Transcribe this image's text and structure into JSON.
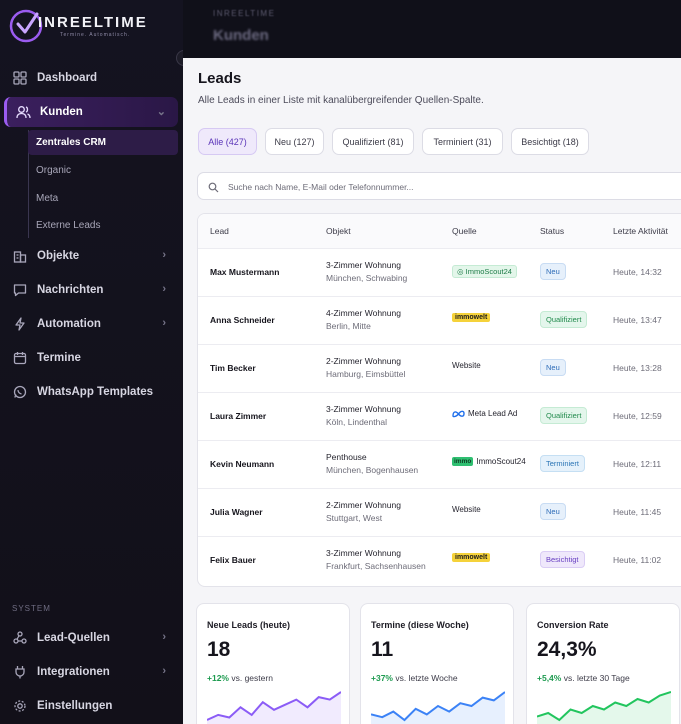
{
  "app": {
    "logo_text": "INREELTIME",
    "logo_sub": "Termine. Automatisch."
  },
  "topbar": {
    "crumb": "INREELTIME",
    "title": "Kunden"
  },
  "sidebar": {
    "items": [
      {
        "label": "Dashboard"
      },
      {
        "label": "Kunden"
      },
      {
        "label": "Objekte"
      },
      {
        "label": "Nachrichten"
      },
      {
        "label": "Automation"
      },
      {
        "label": "Termine"
      },
      {
        "label": "WhatsApp Templates"
      }
    ],
    "subitems": [
      {
        "label": "Zentrales CRM"
      },
      {
        "label": "Organic"
      },
      {
        "label": "Meta"
      },
      {
        "label": "Externe Leads"
      }
    ],
    "system_label": "SYSTEM",
    "system_items": [
      {
        "label": "Lead-Quellen"
      },
      {
        "label": "Integrationen"
      },
      {
        "label": "Einstellungen"
      }
    ]
  },
  "main": {
    "title": "Leads",
    "subtitle": "Alle Leads in einer Liste mit kanalübergreifender Quellen-Spalte.",
    "tabs": [
      {
        "label": "Alle (427)"
      },
      {
        "label": "Neu (127)"
      },
      {
        "label": "Qualifiziert (81)"
      },
      {
        "label": "Terminiert (31)"
      },
      {
        "label": "Besichtigt (18)"
      }
    ],
    "search_placeholder": "Suche nach Name, E-Mail oder Telefonnummer..."
  },
  "table": {
    "columns": [
      "Lead",
      "Objekt",
      "Quelle",
      "Status",
      "Letzte Aktivität"
    ],
    "rows": [
      {
        "name": "Max Mustermann",
        "obj": "3-Zimmer Wohnung",
        "loc": "München, Schwabing",
        "source": "ImmoScout24",
        "status": "Neu",
        "time": "Heute, 14:32"
      },
      {
        "name": "Anna Schneider",
        "obj": "4-Zimmer Wohnung",
        "loc": "Berlin, Mitte",
        "source": "immowelt",
        "status": "Qualifiziert",
        "time": "Heute, 13:47"
      },
      {
        "name": "Tim Becker",
        "obj": "2-Zimmer Wohnung",
        "loc": "Hamburg, Eimsbüttel",
        "source": "Website",
        "status": "Neu",
        "time": "Heute, 13:28"
      },
      {
        "name": "Laura Zimmer",
        "obj": "3-Zimmer Wohnung",
        "loc": "Köln, Lindenthal",
        "source": "Meta Lead Ad",
        "status": "Qualifiziert",
        "time": "Heute, 12:59"
      },
      {
        "name": "Kevin Neumann",
        "obj": "Penthouse",
        "loc": "München, Bogenhausen",
        "source": "ImmoScout24",
        "source_badge": "immo",
        "status": "Terminiert",
        "time": "Heute, 12:11"
      },
      {
        "name": "Julia Wagner",
        "obj": "2-Zimmer Wohnung",
        "loc": "Stuttgart, West",
        "source": "Website",
        "status": "Neu",
        "time": "Heute, 11:45"
      },
      {
        "name": "Felix Bauer",
        "obj": "3-Zimmer Wohnung",
        "loc": "Frankfurt, Sachsenhausen",
        "source": "immowelt",
        "status": "Besichtigt",
        "time": "Heute, 11:02"
      }
    ]
  },
  "stats": [
    {
      "label": "Neue Leads (heute)",
      "value": "18",
      "delta": "+12%",
      "delta_text": "vs. gestern",
      "spark": [
        4,
        6,
        5,
        9,
        6,
        11,
        8,
        10,
        12,
        9,
        13,
        12,
        15
      ],
      "color": "#8b5cf6"
    },
    {
      "label": "Termine (diese Woche)",
      "value": "11",
      "delta": "+37%",
      "delta_text": "vs. letzte Woche",
      "spark": [
        5,
        4,
        6,
        3,
        7,
        5,
        8,
        6,
        9,
        8,
        11,
        10,
        13
      ],
      "color": "#3b82f6"
    },
    {
      "label": "Conversion Rate",
      "value": "24,3%",
      "delta": "+5,4%",
      "delta_text": "vs. letzte 30 Tage",
      "spark": [
        6,
        7,
        5,
        8,
        7,
        9,
        8,
        10,
        9,
        11,
        10,
        12,
        13
      ],
      "color": "#22c55e"
    }
  ]
}
